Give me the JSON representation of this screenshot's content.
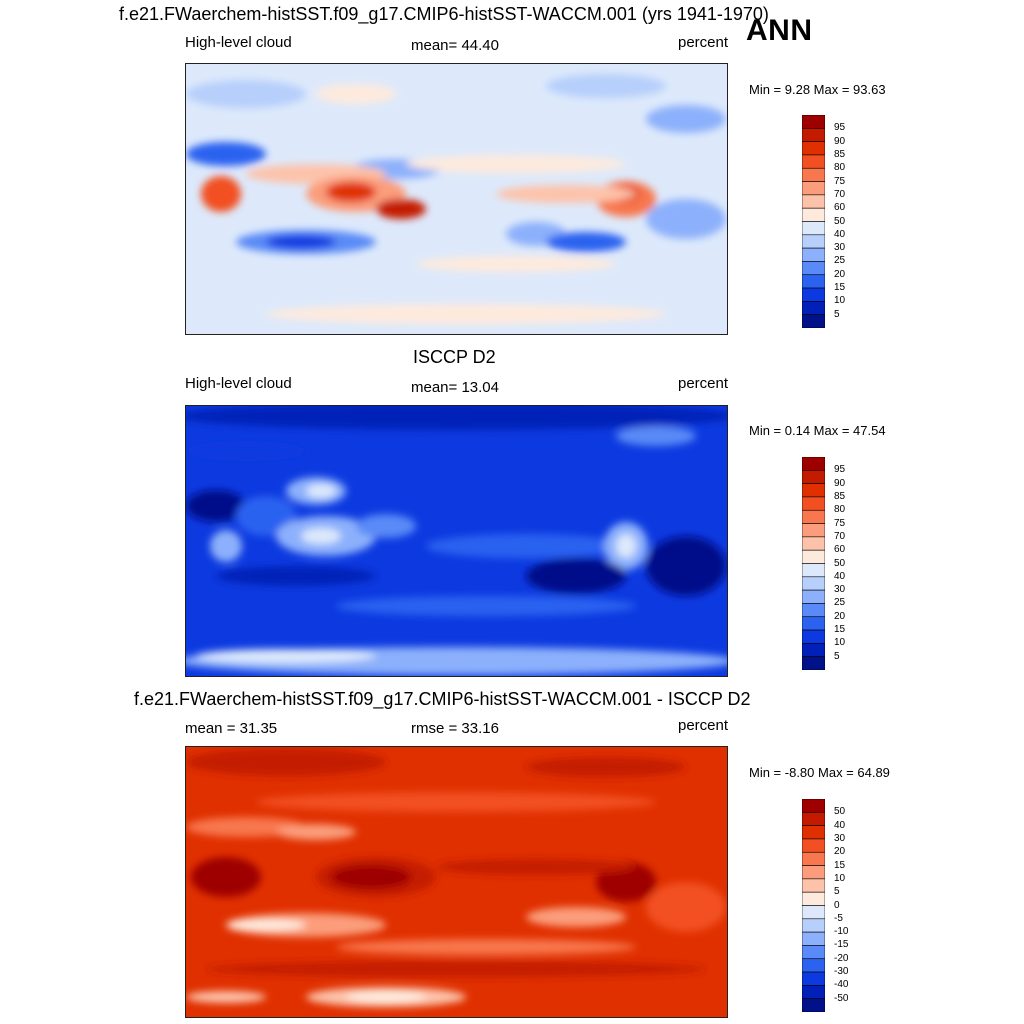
{
  "season_label": "ANN",
  "panels": [
    {
      "title": "f.e21.FWaerchem-histSST.f09_g17.CMIP6-histSST-WACCM.001 (yrs 1941-1970)",
      "left_label": "High-level cloud",
      "center_label": "mean=  44.40",
      "right_label": "percent",
      "minmax": "Min =   9.28 Max =  93.63",
      "colorbar_labels": [
        "95",
        "90",
        "85",
        "80",
        "75",
        "70",
        "60",
        "50",
        "40",
        "30",
        "25",
        "20",
        "15",
        "10",
        "5"
      ],
      "colorbar_colors": [
        "#9e0000",
        "#c41a00",
        "#e03000",
        "#f25022",
        "#f8774e",
        "#fb9d7c",
        "#fdc3aa",
        "#feeadd",
        "#dde9fb",
        "#b6cffb",
        "#8cb0fb",
        "#5a8af7",
        "#2c62f0",
        "#0d3ae0",
        "#0020b8",
        "#00118a"
      ]
    },
    {
      "title": "ISCCP D2",
      "left_label": "High-level cloud",
      "center_label": "mean=  13.04",
      "right_label": "percent",
      "minmax": "Min =   0.14 Max =  47.54",
      "colorbar_labels": [
        "95",
        "90",
        "85",
        "80",
        "75",
        "70",
        "60",
        "50",
        "40",
        "30",
        "25",
        "20",
        "15",
        "10",
        "5"
      ],
      "colorbar_colors": [
        "#9e0000",
        "#c41a00",
        "#e03000",
        "#f25022",
        "#f8774e",
        "#fb9d7c",
        "#fdc3aa",
        "#feeadd",
        "#dde9fb",
        "#b6cffb",
        "#8cb0fb",
        "#5a8af7",
        "#2c62f0",
        "#0d3ae0",
        "#0020b8",
        "#00118a"
      ]
    },
    {
      "title": "f.e21.FWaerchem-histSST.f09_g17.CMIP6-histSST-WACCM.001 - ISCCP D2",
      "left_label": "mean =  31.35",
      "center_label": "rmse =  33.16",
      "right_label": "percent",
      "minmax": "Min =  -8.80 Max =  64.89",
      "colorbar_labels": [
        "50",
        "40",
        "30",
        "20",
        "15",
        "10",
        "5",
        "0",
        "-5",
        "-10",
        "-15",
        "-20",
        "-30",
        "-40",
        "-50"
      ],
      "colorbar_colors": [
        "#9e0000",
        "#c41a00",
        "#e03000",
        "#f25022",
        "#f8774e",
        "#fb9d7c",
        "#fdc3aa",
        "#feeadd",
        "#dde9fb",
        "#b6cffb",
        "#8cb0fb",
        "#5a8af7",
        "#2c62f0",
        "#0d3ae0",
        "#0020b8",
        "#00118a"
      ]
    }
  ],
  "chart_data": [
    {
      "type": "heatmap",
      "title": "f.e21.FWaerchem-histSST.f09_g17.CMIP6-histSST-WACCM.001 (yrs 1941-1970)",
      "variable": "High-level cloud",
      "units": "percent",
      "mean": 44.4,
      "min": 9.28,
      "max": 93.63,
      "contour_levels": [
        5,
        10,
        15,
        20,
        25,
        30,
        40,
        50,
        60,
        70,
        75,
        80,
        85,
        90,
        95
      ]
    },
    {
      "type": "heatmap",
      "title": "ISCCP D2",
      "variable": "High-level cloud",
      "units": "percent",
      "mean": 13.04,
      "min": 0.14,
      "max": 47.54,
      "contour_levels": [
        5,
        10,
        15,
        20,
        25,
        30,
        40,
        50,
        60,
        70,
        75,
        80,
        85,
        90,
        95
      ]
    },
    {
      "type": "heatmap",
      "title": "f.e21.FWaerchem-histSST.f09_g17.CMIP6-histSST-WACCM.001 - ISCCP D2",
      "units": "percent",
      "mean": 31.35,
      "rmse": 33.16,
      "min": -8.8,
      "max": 64.89,
      "contour_levels": [
        -50,
        -40,
        -30,
        -20,
        -15,
        -10,
        -5,
        0,
        5,
        10,
        15,
        20,
        30,
        40,
        50
      ]
    }
  ]
}
